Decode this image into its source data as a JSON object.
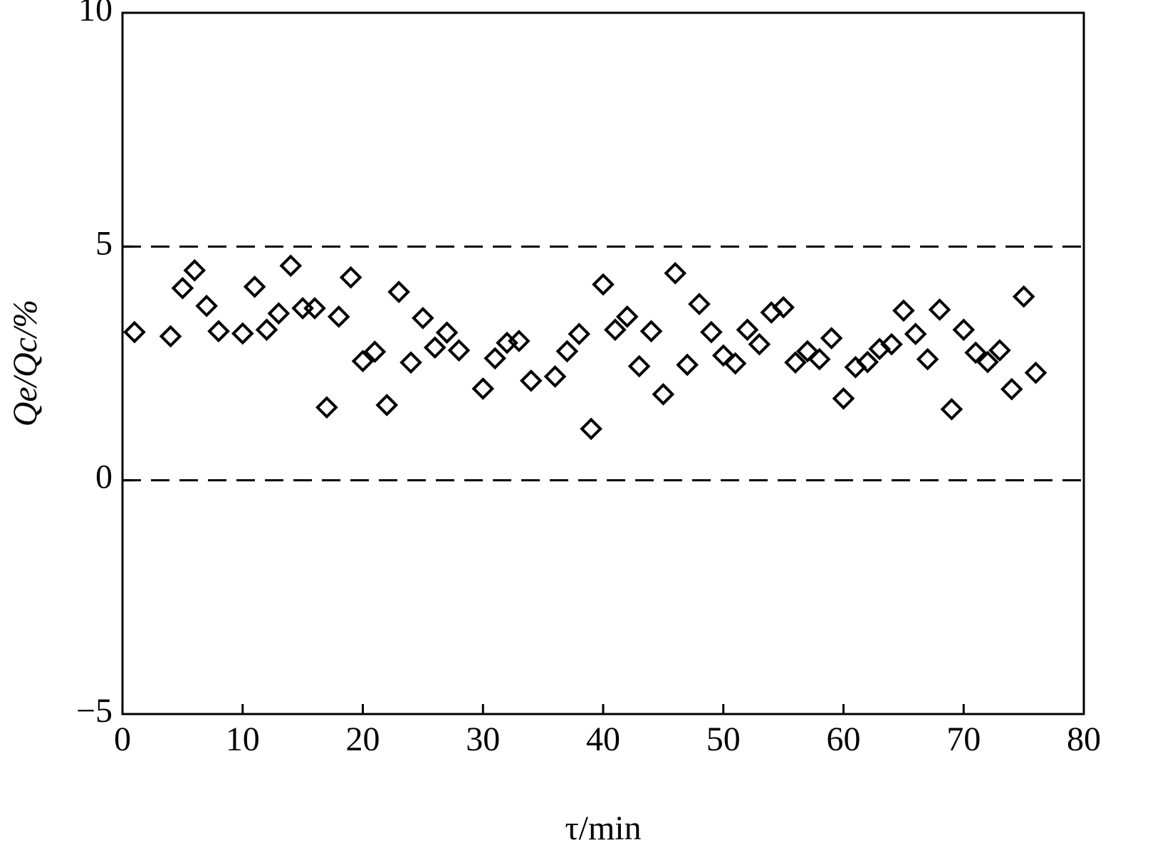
{
  "chart_data": {
    "type": "scatter",
    "x_label": "τ/min",
    "y_label": "Qe/Qc/%",
    "xlim": [
      0,
      80
    ],
    "xticks": [
      0,
      10,
      20,
      30,
      40,
      50,
      60,
      70,
      80
    ],
    "ylim": [
      -5,
      10
    ],
    "yticks": [
      {
        "value": -5,
        "label": "−5"
      },
      0,
      5,
      10
    ],
    "hlines": [
      0,
      5
    ],
    "color": "#000000",
    "x": [
      1,
      4,
      5,
      6,
      7,
      8,
      10,
      11,
      12,
      13,
      14,
      15,
      16,
      17,
      18,
      19,
      20,
      21,
      22,
      23,
      24,
      25,
      26,
      27,
      28,
      30,
      31,
      32,
      33,
      34,
      36,
      37,
      38,
      39,
      40,
      41,
      42,
      43,
      44,
      45,
      46,
      47,
      48,
      49,
      50,
      51,
      52,
      53,
      54,
      55,
      56,
      57,
      58,
      59,
      60,
      61,
      62,
      63,
      64,
      65,
      66,
      67,
      68,
      69,
      70,
      71,
      72,
      73,
      74,
      75,
      76
    ],
    "values": [
      3.17,
      3.08,
      4.11,
      4.49,
      3.73,
      3.19,
      3.14,
      4.14,
      3.22,
      3.57,
      4.59,
      3.68,
      3.68,
      1.56,
      3.5,
      4.34,
      2.55,
      2.75,
      1.61,
      4.03,
      2.52,
      3.47,
      2.84,
      3.16,
      2.78,
      1.96,
      2.61,
      2.94,
      2.98,
      2.13,
      2.22,
      2.76,
      3.13,
      1.1,
      4.19,
      3.22,
      3.5,
      2.44,
      3.19,
      1.84,
      4.43,
      2.47,
      3.77,
      3.17,
      2.67,
      2.5,
      3.22,
      2.91,
      3.59,
      3.7,
      2.52,
      2.76,
      2.59,
      3.04,
      1.75,
      2.42,
      2.53,
      2.81,
      2.91,
      3.63,
      3.13,
      2.59,
      3.65,
      1.52,
      3.22,
      2.73,
      2.53,
      2.78,
      1.95,
      3.93,
      2.3
    ]
  }
}
